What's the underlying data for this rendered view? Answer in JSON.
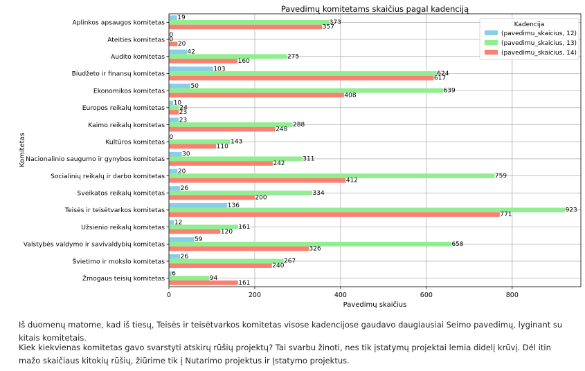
{
  "chart_data": {
    "type": "bar",
    "orientation": "horizontal",
    "title": "Pavedimų komitetams skaičius pagal kadenciją",
    "xlabel": "Pavedimų skaičius",
    "ylabel": "Komitetas",
    "xlim": [
      0,
      960
    ],
    "xticks": [
      "0",
      "200",
      "400",
      "600",
      "800"
    ],
    "grid": "x",
    "legend_title": "Kadencija",
    "legend_position": "top-right",
    "categories": [
      "Aplinkos apsaugos komitetas",
      "Ateities komitetas",
      "Audito komitetas",
      "Biudžeto ir finansų komitetas",
      "Ekonomikos komitetas",
      "Europos reikalų komitetas",
      "Kaimo reikalų komitetas",
      "Kultūros komitetas",
      "Nacionalinio saugumo ir gynybos komitetas",
      "Socialinių reikalų ir darbo komitetas",
      "Sveikatos reikalų komitetas",
      "Teisės ir teisėtvarkos komitetas",
      "Užsienio reikalų komitetas",
      "Valstybės valdymo ir savivaldybių komitetas",
      "Švietimo ir mokslo komitetas",
      "Žmogaus teisių komitetas"
    ],
    "series": [
      {
        "name": "(pavedimu_skaicius, 12)",
        "color": "#87ceeb",
        "values": [
          19,
          0,
          42,
          103,
          50,
          10,
          23,
          0,
          30,
          20,
          26,
          136,
          12,
          59,
          26,
          6
        ]
      },
      {
        "name": "(pavedimu_skaicius, 13)",
        "color": "#90ee90",
        "values": [
          373,
          0,
          275,
          624,
          639,
          24,
          288,
          143,
          311,
          759,
          334,
          923,
          161,
          658,
          267,
          94
        ]
      },
      {
        "name": "(pavedimu_skaicius, 14)",
        "color": "#fa8072",
        "values": [
          357,
          20,
          160,
          617,
          408,
          23,
          248,
          110,
          242,
          412,
          200,
          771,
          120,
          326,
          240,
          161
        ]
      }
    ]
  },
  "text": {
    "paragraph1": "Iš duomenų matome, kad iš tiesų, Teisės ir teisėtvarkos komitetas visose kadencijose gaudavo daugiausiai Seimo pavedimų, lyginant su kitais komitetais.",
    "paragraph2": "Kiek kiekvienas komitetas gavo svarstyti atskirų rūšių projektų? Tai svarbu žinoti, nes tik įstatymų projektai lemia didelį krūvį. Dėl itin mažo skaičiaus kitokių rūšių, žiūrime tik į Nutarimo projektus ir Įstatymo projektus."
  }
}
